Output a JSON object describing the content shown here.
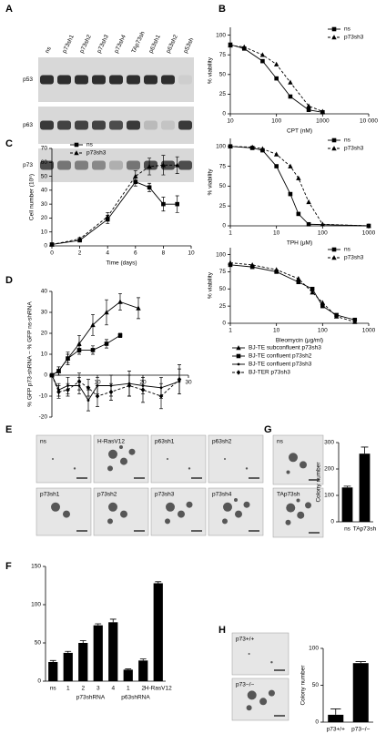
{
  "panel_labels": [
    "A",
    "B",
    "C",
    "D",
    "E",
    "F",
    "G",
    "H"
  ],
  "blot": {
    "lanes": [
      "ns",
      "p73sh1",
      "p73sh2",
      "p73sh3",
      "p73sh4",
      "TAp73sh",
      "p63sh1",
      "p63sh2",
      "p53sh"
    ],
    "rows": [
      "p53",
      "p63",
      "p73"
    ]
  },
  "images": {
    "E": [
      "ns",
      "H-RasV12",
      "p63sh1",
      "p63sh2",
      "p73sh1",
      "p73sh2",
      "p73sh3",
      "p73sh4"
    ],
    "G": [
      "ns",
      "TAp73sh"
    ],
    "H": [
      "p73+/+",
      "p73−/−"
    ]
  },
  "chart_data": [
    {
      "type": "line",
      "xlabel": "CPT (nM)",
      "ylabel": "% viability",
      "log_x": true,
      "xlim": [
        10,
        10000
      ],
      "xticks": [
        10,
        100,
        1000,
        {
          "value": 10000,
          "label": "10 000"
        }
      ],
      "ylim": [
        0,
        110
      ],
      "yticks": [
        0,
        25,
        50,
        75,
        100
      ],
      "legend": "upper-right",
      "series": [
        {
          "name": "ns",
          "color": "#000000",
          "marker": "square",
          "dash": false,
          "x": [
            10,
            20,
            50,
            100,
            200,
            500,
            1000
          ],
          "values": [
            88,
            83,
            67,
            45,
            22,
            5,
            2
          ]
        },
        {
          "name": "p73sh3",
          "color": "#000000",
          "marker": "triangle",
          "dash": true,
          "x": [
            10,
            20,
            50,
            100,
            200,
            500,
            1000
          ],
          "values": [
            87,
            85,
            75,
            63,
            40,
            10,
            3
          ]
        }
      ]
    },
    {
      "type": "line",
      "xlabel": "TPH (μM)",
      "ylabel": "% viability",
      "log_x": true,
      "xlim": [
        1,
        1000
      ],
      "xticks": [
        1,
        10,
        100,
        1000
      ],
      "ylim": [
        0,
        110
      ],
      "yticks": [
        0,
        25,
        50,
        75,
        100
      ],
      "legend": "upper-right",
      "series": [
        {
          "name": "ns",
          "color": "#000000",
          "marker": "square",
          "dash": false,
          "x": [
            1,
            3,
            5,
            10,
            20,
            30,
            50,
            1000
          ],
          "values": [
            100,
            98,
            95,
            75,
            40,
            15,
            2,
            0
          ]
        },
        {
          "name": "p73sh3",
          "color": "#000000",
          "marker": "triangle",
          "dash": true,
          "x": [
            1,
            3,
            5,
            10,
            20,
            30,
            50,
            100,
            1000
          ],
          "values": [
            100,
            99,
            97,
            90,
            75,
            60,
            30,
            2,
            0
          ]
        }
      ]
    },
    {
      "type": "line",
      "xlabel": "Bleomycin (μg/ml)",
      "ylabel": "% viability",
      "log_x": true,
      "xlim": [
        1,
        1000
      ],
      "xticks": [
        1,
        10,
        100,
        1000
      ],
      "ylim": [
        0,
        110
      ],
      "yticks": [
        0,
        25,
        50,
        75,
        100
      ],
      "legend": "upper-right",
      "series": [
        {
          "name": "ns",
          "color": "#000000",
          "marker": "square",
          "dash": false,
          "x": [
            1,
            3,
            10,
            30,
            60,
            100,
            200,
            500
          ],
          "values": [
            85,
            82,
            75,
            60,
            50,
            25,
            12,
            5
          ]
        },
        {
          "name": "p73sh3",
          "color": "#000000",
          "marker": "triangle",
          "dash": true,
          "x": [
            1,
            3,
            10,
            30,
            60,
            100,
            200,
            500
          ],
          "values": [
            88,
            85,
            78,
            65,
            45,
            30,
            10,
            2
          ]
        }
      ]
    },
    {
      "type": "line",
      "xlabel": "Time (days)",
      "ylabel": "Cell number (10⁵)",
      "log_x": false,
      "xlim": [
        0,
        10
      ],
      "xticks": [
        0,
        2,
        4,
        6,
        8,
        10
      ],
      "ylim": [
        0,
        70
      ],
      "yticks": [
        0,
        10,
        20,
        30,
        40,
        50,
        60,
        70
      ],
      "legend": "upper-left",
      "series": [
        {
          "name": "ns",
          "color": "#000000",
          "marker": "square",
          "dash": false,
          "x": [
            0,
            2,
            4,
            6,
            7,
            8,
            9
          ],
          "values": [
            1,
            4,
            19,
            46,
            42,
            30,
            30
          ],
          "errors": [
            0,
            1,
            3,
            3,
            3,
            5,
            6
          ]
        },
        {
          "name": "p73sh3",
          "color": "#000000",
          "marker": "triangle",
          "dash": true,
          "x": [
            0,
            2,
            4,
            6,
            7,
            8,
            9
          ],
          "values": [
            1,
            5,
            21,
            50,
            57,
            58,
            58
          ],
          "errors": [
            0,
            1,
            3,
            4,
            6,
            7,
            6
          ]
        }
      ]
    },
    {
      "type": "line",
      "ylabel": "% GFP p73-shRNA − % GFP ns-shRNA",
      "log_x": false,
      "xaxis_at_zero": true,
      "xlim": [
        0,
        30
      ],
      "xticks": [
        10,
        20,
        30
      ],
      "ylim": [
        -20,
        40
      ],
      "yticks": [
        -20,
        -10,
        0,
        10,
        20,
        30,
        40
      ],
      "legend": "outside-right",
      "series": [
        {
          "name": "BJ-TE subconfluent p73sh3",
          "color": "#000000",
          "marker": "triangle",
          "dash": false,
          "x": [
            0,
            1.5,
            3.5,
            6,
            9,
            12,
            15,
            19
          ],
          "values": [
            0,
            2,
            8,
            15,
            24,
            30,
            35,
            32
          ],
          "errors": [
            0,
            2,
            3,
            4,
            5,
            6,
            4,
            5
          ]
        },
        {
          "name": "BJ-TE confluent p73sh2",
          "color": "#000000",
          "marker": "square",
          "dash": false,
          "x": [
            0,
            1.5,
            3.5,
            6,
            9,
            12,
            15
          ],
          "values": [
            0,
            2,
            8,
            12,
            12,
            15,
            19
          ],
          "errors": [
            0,
            2,
            2,
            2,
            2,
            2,
            1
          ]
        },
        {
          "name": "BJ-TE confluent p73sh3",
          "color": "#000000",
          "marker": "circle",
          "dash": false,
          "x": [
            0,
            1.5,
            3.5,
            6,
            8,
            10,
            13,
            17,
            20,
            24,
            28
          ],
          "values": [
            0,
            -7,
            -5,
            -5,
            -12,
            -5,
            -5,
            -4,
            -5,
            -6,
            -3
          ],
          "errors": [
            0,
            3,
            4,
            4,
            5,
            4,
            5,
            6,
            4,
            5,
            6
          ]
        },
        {
          "name": "BJ-TER p73sh3",
          "color": "#000000",
          "marker": "diamond",
          "dash": true,
          "x": [
            0,
            1.5,
            3.5,
            6,
            8,
            10,
            13,
            17,
            20,
            24,
            28
          ],
          "values": [
            0,
            -8,
            -7,
            -3,
            -6,
            -10,
            -8,
            -5,
            -7,
            -10,
            -2
          ],
          "errors": [
            0,
            3,
            3,
            4,
            4,
            5,
            4,
            5,
            6,
            6,
            7
          ]
        }
      ]
    },
    {
      "type": "bar",
      "categories": [
        "ns",
        "1",
        "2",
        "3",
        "4",
        "1",
        "2",
        "H-RasV12"
      ],
      "group_labels": [
        "p73shRNA",
        "p63shRNA"
      ],
      "values": [
        25,
        37,
        50,
        73,
        77,
        15,
        27,
        128
      ],
      "errors": [
        2,
        2,
        3,
        2,
        4,
        1,
        2,
        2
      ],
      "color": "#000000",
      "ylim": [
        0,
        150
      ],
      "yticks": [
        0,
        50,
        100,
        150
      ]
    },
    {
      "type": "bar",
      "ylabel": "Colony number",
      "categories": [
        "ns",
        "TAp73sh"
      ],
      "values": [
        130,
        258
      ],
      "errors": [
        5,
        25
      ],
      "color": "#000000",
      "ylim": [
        0,
        300
      ],
      "yticks": [
        0,
        100,
        200,
        300
      ]
    },
    {
      "type": "bar",
      "ylabel": "Colony number",
      "categories": [
        "p73+/+",
        "p73−/−"
      ],
      "values": [
        10,
        80
      ],
      "errors": [
        8,
        2
      ],
      "color": "#000000",
      "ylim": [
        0,
        100
      ],
      "yticks": [
        0,
        50,
        100
      ]
    }
  ]
}
